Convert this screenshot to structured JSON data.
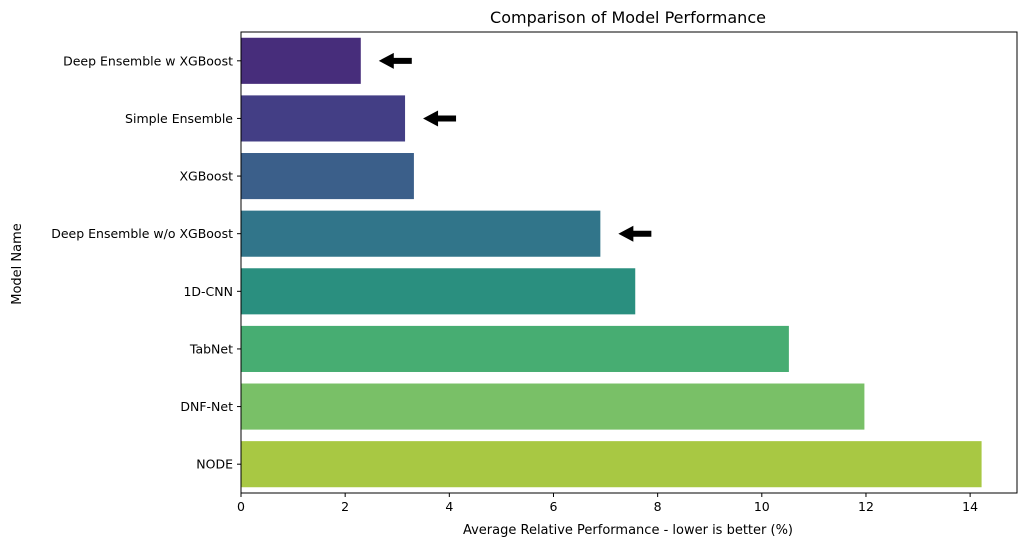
{
  "chart_data": {
    "type": "bar",
    "orientation": "horizontal",
    "title": "Comparison of Model Performance",
    "xlabel": "Average Relative Performance - lower is better (%)",
    "ylabel": "Model Name",
    "categories": [
      "Deep Ensemble w XGBoost",
      "Simple Ensemble",
      "XGBoost",
      "Deep Ensemble w/o XGBoost",
      "1D-CNN",
      "TabNet",
      "DNF-Net",
      "NODE"
    ],
    "values": [
      2.3,
      3.15,
      3.32,
      6.9,
      7.57,
      10.52,
      11.97,
      14.22
    ],
    "colors": [
      "#482576",
      "#414487",
      "#35608d",
      "#2a788e",
      "#21918c",
      "#22a884",
      "#44bf70",
      "#7ad151",
      "#bddf26"
    ],
    "bar_colors": [
      "#472d7b",
      "#433e85",
      "#3b5f8a",
      "#31758a",
      "#2a8f7f",
      "#47ad72",
      "#79c067",
      "#a8c843"
    ],
    "xlim": [
      0,
      14.9
    ],
    "xticks": [
      0,
      2,
      4,
      6,
      8,
      10,
      12,
      14
    ],
    "grid": false,
    "arrows_on": [
      "Deep Ensemble w XGBoost",
      "Simple Ensemble",
      "Deep Ensemble w/o XGBoost"
    ]
  }
}
